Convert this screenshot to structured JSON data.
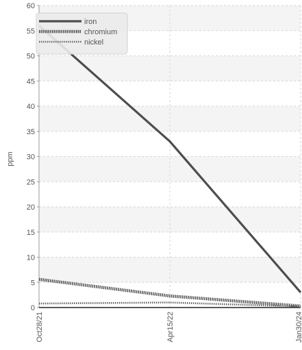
{
  "chart_data": {
    "type": "line",
    "title": "",
    "xlabel": "",
    "ylabel": "ppm",
    "x": [
      "Oct28/21",
      "Apr15/22",
      "Jan30/24"
    ],
    "ylim": [
      0,
      60
    ],
    "y_ticks": [
      0,
      5,
      10,
      15,
      20,
      25,
      30,
      35,
      40,
      45,
      50,
      55,
      60
    ],
    "grid": true,
    "legend_position": "top-left",
    "series": [
      {
        "name": "iron",
        "values": [
          56,
          33,
          3
        ],
        "color": "#4d4d4d",
        "style": "solid"
      },
      {
        "name": "chromium",
        "values": [
          5.6,
          2.3,
          0.3
        ],
        "color": "#4d4d4d",
        "style": "dotted"
      },
      {
        "name": "nickel",
        "values": [
          0.8,
          1.0,
          0.2
        ],
        "color": "#666666",
        "style": "dotted"
      }
    ]
  }
}
